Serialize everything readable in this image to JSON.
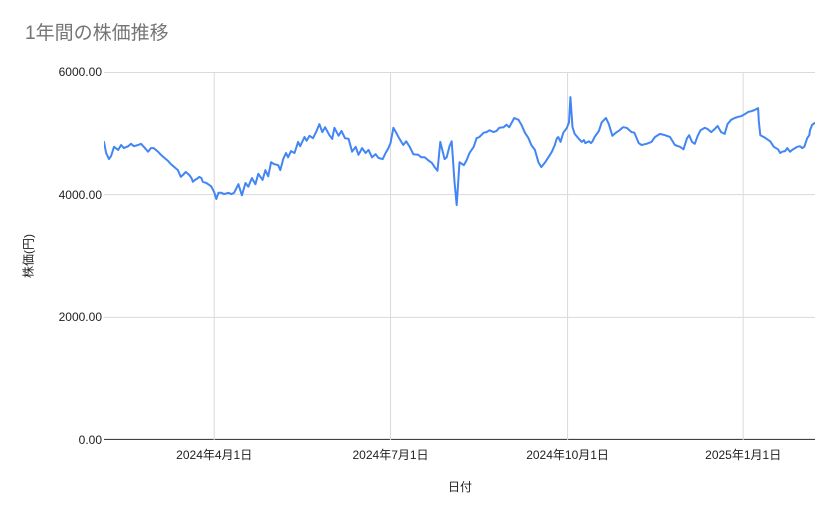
{
  "page": {
    "background_color": "#ffffff"
  },
  "chart_style": {
    "series_color": "#4285f4",
    "series_stroke_width": 2,
    "gridline_color": "#dadada",
    "axis_baseline_color": "#424242",
    "title_color": "#757575",
    "label_color": "#212121"
  },
  "chart_data": {
    "type": "line",
    "title": "1年間の株価推移",
    "xlabel": "日付",
    "ylabel": "株価(円)",
    "ylim": [
      0,
      6000
    ],
    "grid": true,
    "legend_position": "none",
    "y_ticks": [
      "6000.00",
      "4000.00",
      "2000.00",
      "0.00"
    ],
    "y_tick_values": [
      6000,
      4000,
      2000,
      0
    ],
    "x_ticks": [
      {
        "label": "2024年4月1日",
        "pos": 0.155
      },
      {
        "label": "2024年7月1日",
        "pos": 0.403
      },
      {
        "label": "2024年10月1日",
        "pos": 0.652
      },
      {
        "label": "2025年1月1日",
        "pos": 0.899
      }
    ],
    "x_axis_note": "daily stock price over one year; pos is fractional position along time axis",
    "series": [
      {
        "name": "株価",
        "points": [
          [
            0.0,
            4860
          ],
          [
            0.003,
            4680
          ],
          [
            0.007,
            4580
          ],
          [
            0.01,
            4630
          ],
          [
            0.014,
            4780
          ],
          [
            0.02,
            4730
          ],
          [
            0.024,
            4810
          ],
          [
            0.028,
            4760
          ],
          [
            0.034,
            4790
          ],
          [
            0.038,
            4830
          ],
          [
            0.042,
            4790
          ],
          [
            0.048,
            4810
          ],
          [
            0.052,
            4830
          ],
          [
            0.056,
            4780
          ],
          [
            0.062,
            4700
          ],
          [
            0.066,
            4760
          ],
          [
            0.07,
            4760
          ],
          [
            0.076,
            4700
          ],
          [
            0.08,
            4650
          ],
          [
            0.085,
            4600
          ],
          [
            0.09,
            4550
          ],
          [
            0.094,
            4500
          ],
          [
            0.099,
            4450
          ],
          [
            0.104,
            4400
          ],
          [
            0.108,
            4290
          ],
          [
            0.111,
            4320
          ],
          [
            0.115,
            4370
          ],
          [
            0.12,
            4320
          ],
          [
            0.123,
            4270
          ],
          [
            0.125,
            4210
          ],
          [
            0.128,
            4240
          ],
          [
            0.131,
            4260
          ],
          [
            0.134,
            4290
          ],
          [
            0.137,
            4270
          ],
          [
            0.139,
            4210
          ],
          [
            0.144,
            4190
          ],
          [
            0.148,
            4160
          ],
          [
            0.151,
            4130
          ],
          [
            0.155,
            4040
          ],
          [
            0.158,
            3930
          ],
          [
            0.161,
            4030
          ],
          [
            0.165,
            4030
          ],
          [
            0.169,
            4010
          ],
          [
            0.175,
            4030
          ],
          [
            0.179,
            4010
          ],
          [
            0.183,
            4030
          ],
          [
            0.189,
            4170
          ],
          [
            0.194,
            3990
          ],
          [
            0.199,
            4190
          ],
          [
            0.203,
            4130
          ],
          [
            0.208,
            4270
          ],
          [
            0.213,
            4170
          ],
          [
            0.217,
            4340
          ],
          [
            0.223,
            4240
          ],
          [
            0.227,
            4400
          ],
          [
            0.231,
            4300
          ],
          [
            0.235,
            4530
          ],
          [
            0.239,
            4500
          ],
          [
            0.245,
            4480
          ],
          [
            0.248,
            4400
          ],
          [
            0.252,
            4580
          ],
          [
            0.256,
            4680
          ],
          [
            0.259,
            4610
          ],
          [
            0.263,
            4710
          ],
          [
            0.268,
            4680
          ],
          [
            0.273,
            4860
          ],
          [
            0.276,
            4790
          ],
          [
            0.282,
            4940
          ],
          [
            0.285,
            4880
          ],
          [
            0.289,
            4960
          ],
          [
            0.294,
            4920
          ],
          [
            0.299,
            5040
          ],
          [
            0.303,
            5150
          ],
          [
            0.307,
            5020
          ],
          [
            0.311,
            5100
          ],
          [
            0.317,
            4970
          ],
          [
            0.321,
            4910
          ],
          [
            0.324,
            5090
          ],
          [
            0.33,
            4960
          ],
          [
            0.334,
            5040
          ],
          [
            0.339,
            4920
          ],
          [
            0.344,
            4910
          ],
          [
            0.349,
            4700
          ],
          [
            0.354,
            4780
          ],
          [
            0.358,
            4650
          ],
          [
            0.363,
            4760
          ],
          [
            0.368,
            4680
          ],
          [
            0.372,
            4730
          ],
          [
            0.377,
            4610
          ],
          [
            0.382,
            4660
          ],
          [
            0.386,
            4600
          ],
          [
            0.392,
            4580
          ],
          [
            0.396,
            4680
          ],
          [
            0.4,
            4760
          ],
          [
            0.403,
            4840
          ],
          [
            0.407,
            5090
          ],
          [
            0.411,
            5010
          ],
          [
            0.415,
            4920
          ],
          [
            0.421,
            4810
          ],
          [
            0.425,
            4870
          ],
          [
            0.43,
            4780
          ],
          [
            0.435,
            4660
          ],
          [
            0.442,
            4650
          ],
          [
            0.446,
            4610
          ],
          [
            0.451,
            4610
          ],
          [
            0.456,
            4560
          ],
          [
            0.461,
            4520
          ],
          [
            0.465,
            4450
          ],
          [
            0.469,
            4390
          ],
          [
            0.473,
            4860
          ],
          [
            0.479,
            4580
          ],
          [
            0.482,
            4610
          ],
          [
            0.486,
            4790
          ],
          [
            0.489,
            4870
          ],
          [
            0.493,
            4210
          ],
          [
            0.496,
            3830
          ],
          [
            0.5,
            4530
          ],
          [
            0.506,
            4480
          ],
          [
            0.51,
            4560
          ],
          [
            0.514,
            4680
          ],
          [
            0.52,
            4780
          ],
          [
            0.524,
            4920
          ],
          [
            0.528,
            4940
          ],
          [
            0.534,
            5010
          ],
          [
            0.538,
            5020
          ],
          [
            0.542,
            5050
          ],
          [
            0.548,
            5020
          ],
          [
            0.552,
            5040
          ],
          [
            0.556,
            5090
          ],
          [
            0.562,
            5100
          ],
          [
            0.566,
            5140
          ],
          [
            0.57,
            5100
          ],
          [
            0.577,
            5250
          ],
          [
            0.583,
            5220
          ],
          [
            0.587,
            5140
          ],
          [
            0.592,
            5010
          ],
          [
            0.597,
            4920
          ],
          [
            0.601,
            4810
          ],
          [
            0.606,
            4730
          ],
          [
            0.608,
            4650
          ],
          [
            0.611,
            4530
          ],
          [
            0.615,
            4450
          ],
          [
            0.62,
            4520
          ],
          [
            0.625,
            4610
          ],
          [
            0.63,
            4700
          ],
          [
            0.634,
            4810
          ],
          [
            0.637,
            4920
          ],
          [
            0.639,
            4940
          ],
          [
            0.642,
            4860
          ],
          [
            0.646,
            5010
          ],
          [
            0.651,
            5090
          ],
          [
            0.654,
            5180
          ],
          [
            0.656,
            5590
          ],
          [
            0.659,
            5100
          ],
          [
            0.662,
            4990
          ],
          [
            0.668,
            4910
          ],
          [
            0.672,
            4860
          ],
          [
            0.675,
            4890
          ],
          [
            0.677,
            4840
          ],
          [
            0.682,
            4870
          ],
          [
            0.685,
            4840
          ],
          [
            0.687,
            4870
          ],
          [
            0.69,
            4940
          ],
          [
            0.696,
            5040
          ],
          [
            0.7,
            5180
          ],
          [
            0.706,
            5250
          ],
          [
            0.71,
            5150
          ],
          [
            0.715,
            4960
          ],
          [
            0.72,
            5010
          ],
          [
            0.725,
            5050
          ],
          [
            0.73,
            5100
          ],
          [
            0.735,
            5090
          ],
          [
            0.742,
            5020
          ],
          [
            0.746,
            5010
          ],
          [
            0.752,
            4840
          ],
          [
            0.756,
            4810
          ],
          [
            0.763,
            4830
          ],
          [
            0.77,
            4860
          ],
          [
            0.775,
            4940
          ],
          [
            0.782,
            4990
          ],
          [
            0.789,
            4970
          ],
          [
            0.796,
            4940
          ],
          [
            0.803,
            4810
          ],
          [
            0.81,
            4780
          ],
          [
            0.815,
            4740
          ],
          [
            0.82,
            4920
          ],
          [
            0.823,
            4970
          ],
          [
            0.827,
            4860
          ],
          [
            0.831,
            4830
          ],
          [
            0.835,
            4960
          ],
          [
            0.839,
            5050
          ],
          [
            0.845,
            5090
          ],
          [
            0.849,
            5070
          ],
          [
            0.854,
            5020
          ],
          [
            0.859,
            5070
          ],
          [
            0.863,
            5120
          ],
          [
            0.868,
            5020
          ],
          [
            0.873,
            4990
          ],
          [
            0.877,
            5150
          ],
          [
            0.882,
            5220
          ],
          [
            0.887,
            5250
          ],
          [
            0.892,
            5270
          ],
          [
            0.896,
            5280
          ],
          [
            0.901,
            5310
          ],
          [
            0.906,
            5350
          ],
          [
            0.91,
            5360
          ],
          [
            0.915,
            5380
          ],
          [
            0.92,
            5410
          ],
          [
            0.921,
            5200
          ],
          [
            0.923,
            4970
          ],
          [
            0.928,
            4940
          ],
          [
            0.932,
            4910
          ],
          [
            0.937,
            4870
          ],
          [
            0.942,
            4780
          ],
          [
            0.948,
            4740
          ],
          [
            0.951,
            4680
          ],
          [
            0.954,
            4700
          ],
          [
            0.958,
            4710
          ],
          [
            0.961,
            4760
          ],
          [
            0.965,
            4700
          ],
          [
            0.968,
            4730
          ],
          [
            0.972,
            4760
          ],
          [
            0.975,
            4780
          ],
          [
            0.979,
            4790
          ],
          [
            0.982,
            4760
          ],
          [
            0.985,
            4780
          ],
          [
            0.989,
            4920
          ],
          [
            0.992,
            4970
          ],
          [
            0.993,
            5050
          ],
          [
            0.996,
            5140
          ],
          [
            1.0,
            5170
          ]
        ]
      }
    ]
  }
}
